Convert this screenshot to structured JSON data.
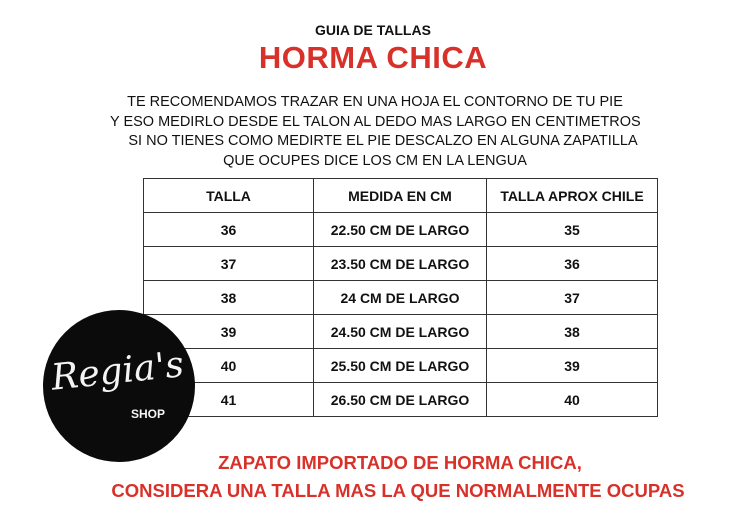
{
  "header": {
    "subtitle": "GUIA DE TALLAS",
    "title": "HORMA CHICA"
  },
  "intro": [
    "TE RECOMENDAMOS TRAZAR EN UNA HOJA EL CONTORNO DE TU PIE",
    "Y ESO MEDIRLO DESDE EL TALON AL DEDO MAS LARGO EN CENTIMETROS",
    "SI NO TIENES COMO MEDIRTE EL PIE DESCALZO EN  ALGUNA ZAPATILLA",
    "QUE OCUPES DICE LOS CM EN LA LENGUA"
  ],
  "table": {
    "headers": [
      "TALLA",
      "MEDIDA EN CM",
      "TALLA APROX CHILE"
    ],
    "rows": [
      [
        "36",
        "22.50 CM DE LARGO",
        "35"
      ],
      [
        "37",
        "23.50 CM DE LARGO",
        "36"
      ],
      [
        "38",
        "24 CM DE LARGO",
        "37"
      ],
      [
        "39",
        "24.50 CM DE LARGO",
        "38"
      ],
      [
        "40",
        "25.50 CM DE LARGO",
        "39"
      ],
      [
        "41",
        "26.50 CM DE LARGO",
        "40"
      ]
    ]
  },
  "logo": {
    "script": "Regia's",
    "shop": "SHOP"
  },
  "warning": [
    "ZAPATO IMPORTADO DE HORMA CHICA,",
    "CONSIDERA UNA TALLA MAS LA QUE NORMALMENTE OCUPAS"
  ],
  "colors": {
    "accent": "#d8312a",
    "logo_bg": "#0b0b0b"
  }
}
